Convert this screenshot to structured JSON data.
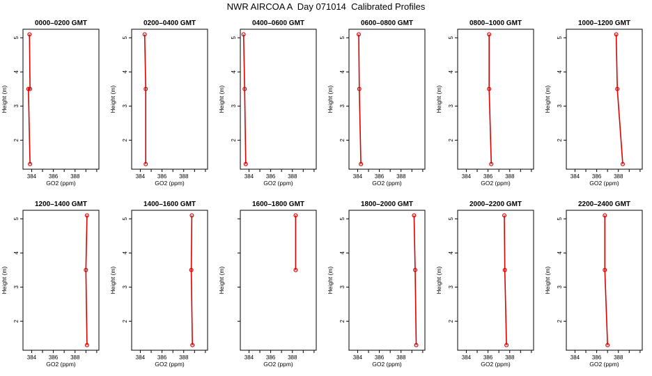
{
  "title": "NWR AIRCOA A  Day 071014  Calibrated Profiles",
  "colors": {
    "line": "#dd0000",
    "marker": "#dd0000",
    "axis": "#000000"
  },
  "chart_data": [
    {
      "type": "line",
      "title": "0000–0200 GMT",
      "xlabel": "GO2 (ppm)",
      "ylabel": "Height (m)",
      "xlim": [
        383.2,
        390.2
      ],
      "ylim": [
        1.15,
        5.25
      ],
      "xticks": [
        384,
        385,
        386,
        387,
        388,
        389,
        390
      ],
      "xtick_labels": [
        "384",
        "",
        "386",
        "",
        "388",
        "",
        ""
      ],
      "yticks": [
        2,
        3,
        4,
        5
      ],
      "ytick_labels": [
        "2",
        "3",
        "4",
        "5"
      ],
      "grid": false,
      "series": [
        {
          "x": [
            383.85,
            383.7,
            383.85,
            383.8
          ],
          "y": [
            1.3,
            3.5,
            3.5,
            5.1
          ]
        }
      ]
    },
    {
      "type": "line",
      "title": "0200–0400 GMT",
      "xlabel": "GO2 (ppm)",
      "ylabel": "Height (m)",
      "xlim": [
        383.2,
        390.2
      ],
      "ylim": [
        1.15,
        5.25
      ],
      "xticks": [
        384,
        385,
        386,
        387,
        388,
        389,
        390
      ],
      "xtick_labels": [
        "384",
        "",
        "386",
        "",
        "388",
        "",
        ""
      ],
      "yticks": [
        2,
        3,
        4,
        5
      ],
      "ytick_labels": [
        "2",
        "3",
        "4",
        "5"
      ],
      "grid": false,
      "series": [
        {
          "x": [
            384.5,
            384.5,
            384.4
          ],
          "y": [
            1.3,
            3.5,
            5.1
          ]
        }
      ]
    },
    {
      "type": "line",
      "title": "0400–0600 GMT",
      "xlabel": "GO2 (ppm)",
      "ylabel": "Height (m)",
      "xlim": [
        383.2,
        390.2
      ],
      "ylim": [
        1.15,
        5.25
      ],
      "xticks": [
        384,
        385,
        386,
        387,
        388,
        389,
        390
      ],
      "xtick_labels": [
        "384",
        "",
        "386",
        "",
        "388",
        "",
        ""
      ],
      "yticks": [
        2,
        3,
        4,
        5
      ],
      "ytick_labels": [
        "2",
        "3",
        "4",
        "5"
      ],
      "grid": false,
      "series": [
        {
          "x": [
            383.7,
            383.6,
            383.5
          ],
          "y": [
            1.3,
            3.5,
            5.1
          ]
        }
      ]
    },
    {
      "type": "line",
      "title": "0600–0800 GMT",
      "xlabel": "GO2 (ppm)",
      "ylabel": "Height (m)",
      "xlim": [
        383.2,
        390.2
      ],
      "ylim": [
        1.15,
        5.25
      ],
      "xticks": [
        384,
        385,
        386,
        387,
        388,
        389,
        390
      ],
      "xtick_labels": [
        "384",
        "",
        "386",
        "",
        "388",
        "",
        ""
      ],
      "yticks": [
        2,
        3,
        4,
        5
      ],
      "ytick_labels": [
        "2",
        "3",
        "4",
        "5"
      ],
      "grid": false,
      "series": [
        {
          "x": [
            384.3,
            384.15,
            384.1
          ],
          "y": [
            1.3,
            3.5,
            5.1
          ]
        }
      ]
    },
    {
      "type": "line",
      "title": "0800–1000 GMT",
      "xlabel": "GO2 (ppm)",
      "ylabel": "Height (m)",
      "xlim": [
        383.2,
        390.2
      ],
      "ylim": [
        1.15,
        5.25
      ],
      "xticks": [
        384,
        385,
        386,
        387,
        388,
        389,
        390
      ],
      "xtick_labels": [
        "384",
        "",
        "386",
        "",
        "388",
        "",
        ""
      ],
      "yticks": [
        2,
        3,
        4,
        5
      ],
      "ytick_labels": [
        "2",
        "3",
        "4",
        "5"
      ],
      "grid": false,
      "series": [
        {
          "x": [
            386.3,
            386.1,
            386.1
          ],
          "y": [
            1.3,
            3.5,
            5.1
          ]
        }
      ]
    },
    {
      "type": "line",
      "title": "1000–1200 GMT",
      "xlabel": "GO2 (ppm)",
      "ylabel": "Height (m)",
      "xlim": [
        383.2,
        390.2
      ],
      "ylim": [
        1.15,
        5.25
      ],
      "xticks": [
        384,
        385,
        386,
        387,
        388,
        389,
        390
      ],
      "xtick_labels": [
        "384",
        "",
        "386",
        "",
        "388",
        "",
        ""
      ],
      "yticks": [
        2,
        3,
        4,
        5
      ],
      "ytick_labels": [
        "2",
        "3",
        "4",
        "5"
      ],
      "grid": false,
      "series": [
        {
          "x": [
            388.4,
            387.9,
            387.8
          ],
          "y": [
            1.3,
            3.5,
            5.1
          ]
        }
      ]
    },
    {
      "type": "line",
      "title": "1200–1400 GMT",
      "xlabel": "GO2 (ppm)",
      "ylabel": "Height (m)",
      "xlim": [
        383.2,
        390.2
      ],
      "ylim": [
        1.15,
        5.25
      ],
      "xticks": [
        384,
        385,
        386,
        387,
        388,
        389,
        390
      ],
      "xtick_labels": [
        "384",
        "",
        "386",
        "",
        "388",
        "",
        ""
      ],
      "yticks": [
        2,
        3,
        4,
        5
      ],
      "ytick_labels": [
        "2",
        "3",
        "4",
        "5"
      ],
      "grid": false,
      "series": [
        {
          "x": [
            389.1,
            389.0,
            389.1
          ],
          "y": [
            1.3,
            3.5,
            5.1
          ]
        }
      ]
    },
    {
      "type": "line",
      "title": "1400–1600 GMT",
      "xlabel": "GO2 (ppm)",
      "ylabel": "Height (m)",
      "xlim": [
        383.2,
        390.2
      ],
      "ylim": [
        1.15,
        5.25
      ],
      "xticks": [
        384,
        385,
        386,
        387,
        388,
        389,
        390
      ],
      "xtick_labels": [
        "384",
        "",
        "386",
        "",
        "388",
        "",
        ""
      ],
      "yticks": [
        2,
        3,
        4,
        5
      ],
      "ytick_labels": [
        "2",
        "3",
        "4",
        "5"
      ],
      "grid": false,
      "series": [
        {
          "x": [
            388.8,
            388.7,
            388.75
          ],
          "y": [
            1.3,
            3.5,
            5.1
          ]
        }
      ]
    },
    {
      "type": "line",
      "title": "1600–1800 GMT",
      "xlabel": "GO2 (ppm)",
      "ylabel": "Height (m)",
      "xlim": [
        383.2,
        390.2
      ],
      "ylim": [
        1.15,
        5.25
      ],
      "xticks": [
        384,
        385,
        386,
        387,
        388,
        389,
        390
      ],
      "xtick_labels": [
        "384",
        "",
        "386",
        "",
        "388",
        "",
        ""
      ],
      "yticks": [
        2,
        3,
        4,
        5
      ],
      "ytick_labels": [
        "",
        "",
        "",
        ""
      ],
      "grid": false,
      "series": [
        {
          "x": [
            388.3,
            388.3
          ],
          "y": [
            3.5,
            5.1
          ]
        }
      ]
    },
    {
      "type": "line",
      "title": "1800–2000 GMT",
      "xlabel": "GO2 (ppm)",
      "ylabel": "Height (m)",
      "xlim": [
        383.2,
        390.2
      ],
      "ylim": [
        1.15,
        5.25
      ],
      "xticks": [
        384,
        385,
        386,
        387,
        388,
        389,
        390
      ],
      "xtick_labels": [
        "384",
        "",
        "386",
        "",
        "388",
        "",
        ""
      ],
      "yticks": [
        2,
        3,
        4,
        5
      ],
      "ytick_labels": [
        "2",
        "3",
        "4",
        "5"
      ],
      "grid": false,
      "series": [
        {
          "x": [
            389.4,
            389.3,
            389.2
          ],
          "y": [
            1.3,
            3.5,
            5.1
          ]
        }
      ]
    },
    {
      "type": "line",
      "title": "2000–2200 GMT",
      "xlabel": "GO2 (ppm)",
      "ylabel": "Height (m)",
      "xlim": [
        383.2,
        390.2
      ],
      "ylim": [
        1.15,
        5.25
      ],
      "xticks": [
        384,
        385,
        386,
        387,
        388,
        389,
        390
      ],
      "xtick_labels": [
        "384",
        "",
        "386",
        "",
        "388",
        "",
        ""
      ],
      "yticks": [
        2,
        3,
        4,
        5
      ],
      "ytick_labels": [
        "2",
        "3",
        "4",
        "5"
      ],
      "grid": false,
      "series": [
        {
          "x": [
            387.7,
            387.55,
            387.5
          ],
          "y": [
            1.3,
            3.5,
            5.1
          ]
        }
      ]
    },
    {
      "type": "line",
      "title": "2200–2400 GMT",
      "xlabel": "GO2 (ppm)",
      "ylabel": "Height (m)",
      "xlim": [
        383.2,
        390.2
      ],
      "ylim": [
        1.15,
        5.25
      ],
      "xticks": [
        384,
        385,
        386,
        387,
        388,
        389,
        390
      ],
      "xtick_labels": [
        "384",
        "",
        "386",
        "",
        "388",
        "",
        ""
      ],
      "yticks": [
        2,
        3,
        4,
        5
      ],
      "ytick_labels": [
        "2",
        "3",
        "4",
        "5"
      ],
      "grid": false,
      "series": [
        {
          "x": [
            387.0,
            386.75,
            386.75
          ],
          "y": [
            1.3,
            3.5,
            5.1
          ]
        }
      ]
    }
  ]
}
